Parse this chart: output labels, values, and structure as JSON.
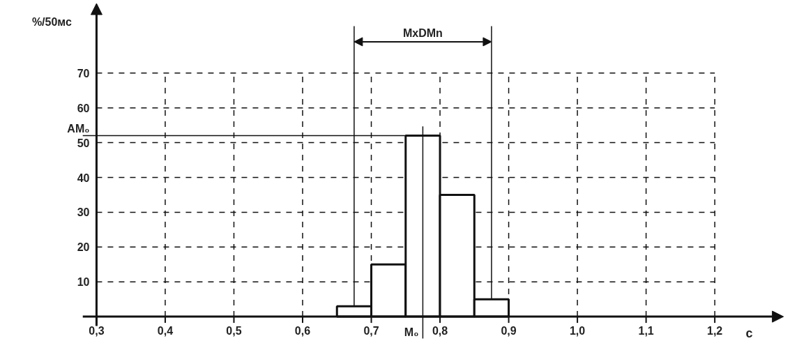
{
  "chart_data": {
    "type": "histogram",
    "ylabel": "%/50мс",
    "xlabel": "с",
    "bins": [
      0.65,
      0.7,
      0.75,
      0.8,
      0.85,
      0.9
    ],
    "values": [
      3,
      15,
      52,
      35,
      5
    ],
    "color": "#ffffff",
    "xlim": [
      0.3,
      1.3
    ],
    "ylim": [
      0,
      90
    ],
    "xticks": [
      {
        "value": 0.3,
        "label": "0,3"
      },
      {
        "value": 0.4,
        "label": "0,4"
      },
      {
        "value": 0.5,
        "label": "0,5"
      },
      {
        "value": 0.6,
        "label": "0,6"
      },
      {
        "value": 0.7,
        "label": "0,7"
      },
      {
        "value": 0.8,
        "label": "0,8"
      },
      {
        "value": 0.9,
        "label": "0,9"
      },
      {
        "value": 1.0,
        "label": "1,0"
      },
      {
        "value": 1.1,
        "label": "1,1"
      },
      {
        "value": 1.2,
        "label": "1,2"
      }
    ],
    "yticks": [
      10,
      20,
      30,
      40,
      50,
      60,
      70
    ],
    "grid": true,
    "ref_lines": [
      {
        "axis": "y",
        "value": 52,
        "label": "AM₀"
      },
      {
        "axis": "x",
        "value": 0.775,
        "label": "M₀"
      },
      {
        "axis": "x",
        "value": 0.675,
        "label": null
      },
      {
        "axis": "x",
        "value": 0.875,
        "label": null
      }
    ],
    "annotations": [
      "MxDMn"
    ]
  }
}
